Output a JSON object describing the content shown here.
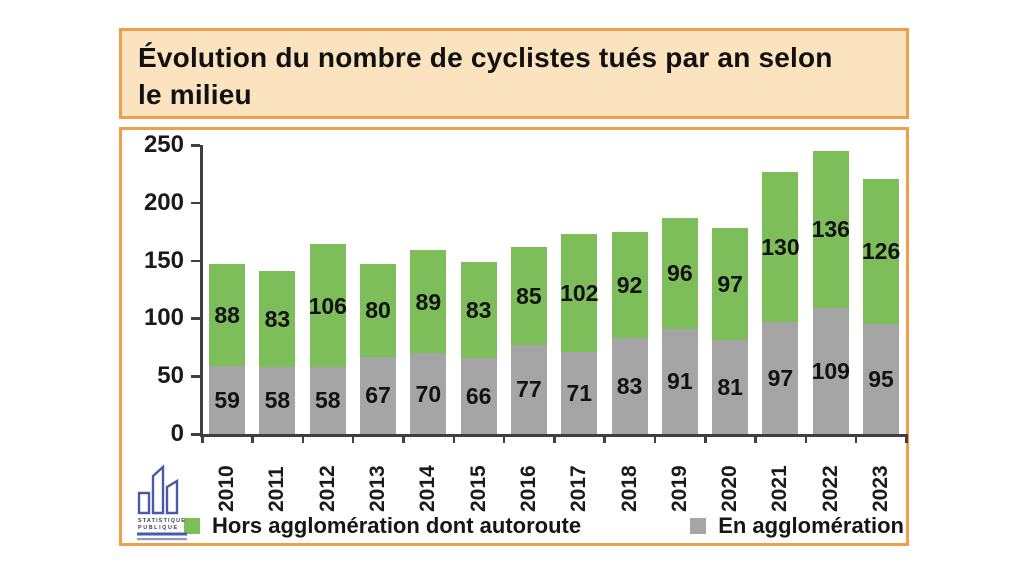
{
  "title": {
    "full": "Évolution du nombre de cyclistes tués par an selon le milieu",
    "lines": [
      "Évolution du nombre de cyclistes tués par an selon",
      "le milieu"
    ]
  },
  "logo": {
    "name": "statistique-publique-logo",
    "text_line1": "STATISTIQUE",
    "text_line2": "PUBLIQUE",
    "color": "#4a5aa8"
  },
  "colors": {
    "panel_border": "#f09e4a",
    "title_box_fill": "#fbe3bf",
    "green_series": "#7dbe5b",
    "gray_series": "#a5a5a5",
    "axis": "#3f3f3f",
    "text": "#1a1a1a",
    "background": "#ffffff"
  },
  "chart_data": {
    "type": "bar",
    "stacked": true,
    "title": "Évolution du nombre de cyclistes tués par an selon le milieu",
    "xlabel": "",
    "ylabel": "",
    "categories": [
      "2010",
      "2011",
      "2012",
      "2013",
      "2014",
      "2015",
      "2016",
      "2017",
      "2018",
      "2019",
      "2020",
      "2021",
      "2022",
      "2023"
    ],
    "series": [
      {
        "name": "En agglomération",
        "color": "#a5a5a5",
        "values": [
          59,
          58,
          58,
          67,
          70,
          66,
          77,
          71,
          83,
          91,
          81,
          97,
          109,
          95
        ]
      },
      {
        "name": "Hors agglomération dont autoroute",
        "color": "#7dbe5b",
        "values": [
          88,
          83,
          106,
          80,
          89,
          83,
          85,
          102,
          92,
          96,
          97,
          130,
          136,
          126
        ]
      }
    ],
    "totals": [
      147,
      141,
      164,
      147,
      159,
      149,
      162,
      173,
      175,
      187,
      178,
      227,
      245,
      221
    ],
    "yticks": [
      0,
      50,
      100,
      150,
      200,
      250
    ],
    "ylim": [
      0,
      250
    ],
    "grid": false,
    "data_labels": true,
    "legend_position": "bottom",
    "legend": [
      {
        "label": "Hors agglomération dont autoroute",
        "color": "#7dbe5b"
      },
      {
        "label": "En agglomération",
        "color": "#a5a5a5"
      }
    ]
  }
}
